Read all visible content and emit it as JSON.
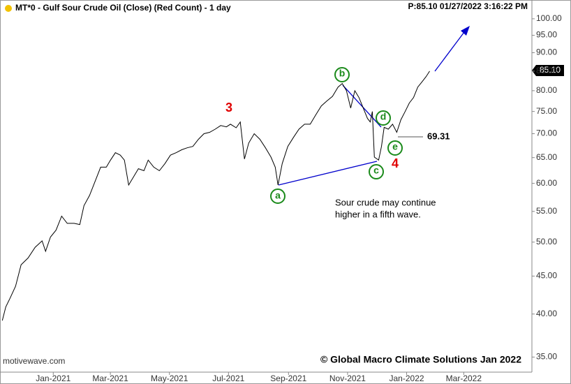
{
  "chart_data": {
    "type": "line",
    "title": "MT*0 - Gulf Sour Crude Oil (Close) (Red Count) - 1 day",
    "subtitle": "P:85.10  01/27/2022 3:16:22 PM",
    "watermark": "motivewave.com",
    "copyright": "© Global Macro Climate Solutions Jan 2022",
    "note": [
      "Sour crude may continue",
      "higher in a fifth wave."
    ],
    "price_tag": "85.10",
    "level_label": "69.31",
    "wave_labels": {
      "w3": "3",
      "w4": "4",
      "a": "a",
      "b": "b",
      "c": "c",
      "d": "d",
      "e": "e"
    },
    "log_scale": true,
    "color": "#000000",
    "annotation_color": "#0000cc",
    "xlim": [
      -55,
      494.4
    ],
    "ylim": [
      33.4,
      106
    ],
    "xticks": [
      {
        "value": 0,
        "label": "Jan-2021"
      },
      {
        "value": 59,
        "label": "Mar-2021"
      },
      {
        "value": 120,
        "label": "May-2021"
      },
      {
        "value": 181,
        "label": "Jul-2021"
      },
      {
        "value": 243,
        "label": "Sep-2021"
      },
      {
        "value": 304,
        "label": "Nov-2021"
      },
      {
        "value": 365,
        "label": "Jan-2022"
      },
      {
        "value": 424,
        "label": "Mar-2022"
      }
    ],
    "yticks": [
      {
        "value": 35,
        "label": "35.00"
      },
      {
        "value": 40,
        "label": "40.00"
      },
      {
        "value": 45,
        "label": "45.00"
      },
      {
        "value": 50,
        "label": "50.00"
      },
      {
        "value": 55,
        "label": "55.00"
      },
      {
        "value": 60,
        "label": "60.00"
      },
      {
        "value": 65,
        "label": "65.00"
      },
      {
        "value": 70,
        "label": "70.00"
      },
      {
        "value": 75,
        "label": "75.00"
      },
      {
        "value": 80,
        "label": "80.00"
      },
      {
        "value": 85,
        "label": "85.00"
      },
      {
        "value": 90,
        "label": "90.00"
      },
      {
        "value": 95,
        "label": "95.00"
      },
      {
        "value": 100,
        "label": "100.00"
      }
    ],
    "series": [
      {
        "name": "Close",
        "color": "#000000",
        "x": [
          -52.6,
          -49,
          -44.7,
          -38.9,
          -33.2,
          -26,
          -18.7,
          -11.5,
          -7.9,
          -2.9,
          2.9,
          8.7,
          14.4,
          21.6,
          27.4,
          31.7,
          37.5,
          43.3,
          49,
          54.8,
          59.1,
          64.2,
          69.2,
          73.5,
          77.9,
          82.2,
          88,
          93.7,
          98.1,
          103.8,
          109.6,
          115.4,
          121.1,
          126.9,
          132.7,
          138.4,
          144.2,
          150,
          155.7,
          161.5,
          167.3,
          173,
          178.8,
          183.1,
          188.9,
          193.2,
          197.5,
          201.9,
          207.6,
          213.4,
          219.2,
          224.9,
          229.3,
          232.2,
          236.5,
          242.3,
          248.1,
          253.8,
          259.6,
          265.4,
          271.1,
          276.9,
          282.7,
          288.4,
          294.2,
          298.5,
          302.8,
          307.2,
          311.5,
          315.8,
          320.2,
          324.5,
          327.4,
          329.6,
          331.7,
          336.1,
          339,
          341.8,
          346.1,
          350.5,
          354.8,
          359.1,
          363.5,
          367.8,
          372.1,
          376.5,
          380.8,
          385.2,
          388.8
        ],
        "values": [
          39.2,
          40.9,
          42,
          43.6,
          46.6,
          47.6,
          49.2,
          50.2,
          48.6,
          50.8,
          51.9,
          54.2,
          53,
          53,
          52.8,
          56,
          57.8,
          60.4,
          63.1,
          63.1,
          64.5,
          66,
          65.5,
          64.5,
          59.7,
          61,
          62.8,
          62.4,
          64.5,
          63.1,
          62.4,
          63.8,
          65.5,
          66,
          66.6,
          67,
          67.3,
          68.8,
          70,
          70.3,
          71,
          71.8,
          71.5,
          72.1,
          71.3,
          72.6,
          64.7,
          68,
          70,
          68.8,
          67,
          65.1,
          63.1,
          59.7,
          63.8,
          67.3,
          69.2,
          71,
          72.1,
          72.1,
          74.2,
          76.3,
          77.5,
          78.6,
          80.9,
          81.8,
          80,
          75.8,
          80,
          78.3,
          75.8,
          73.4,
          72.6,
          75,
          65.1,
          64.5,
          67.3,
          71.4,
          71,
          72.1,
          70.3,
          73.1,
          75,
          77,
          78.3,
          80.9,
          82.2,
          83.6,
          85
        ]
      }
    ]
  }
}
